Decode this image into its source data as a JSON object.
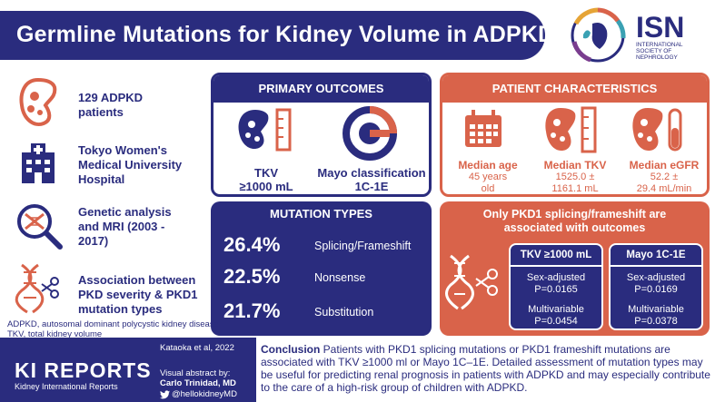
{
  "header": {
    "title": "Germline Mutations for Kidney Volume in ADPKD",
    "logo_text": "ISN",
    "logo_subtitle": "INTERNATIONAL SOCIETY OF NEPHROLOGY"
  },
  "left_items": [
    {
      "icon": "kidney-icon",
      "text": "129 ADPKD patients"
    },
    {
      "icon": "hospital-icon",
      "text": "Tokyo Women's Medical University Hospital"
    },
    {
      "icon": "dna-magnifier-icon",
      "text": "Genetic analysis and MRI (2003 - 2017)"
    },
    {
      "icon": "dna-scissors-icon",
      "text": "Association between PKD severity & PKD1 mutation types"
    }
  ],
  "primary_outcomes": {
    "heading": "PRIMARY OUTCOMES",
    "items": [
      {
        "label_line1": "TKV",
        "label_line2": "≥1000 mL"
      },
      {
        "label_line1": "Mayo classification",
        "label_line2": "1C-1E"
      }
    ]
  },
  "patient_characteristics": {
    "heading": "PATIENT CHARACTERISTICS",
    "items": [
      {
        "label": "Median age",
        "value_line1": "45 years",
        "value_line2": "old"
      },
      {
        "label": "Median TKV",
        "value_line1": "1525.0  ±",
        "value_line2": "1161.1 mL"
      },
      {
        "label": "Median eGFR",
        "value_line1": "52.2  ±",
        "value_line2": "29.4 mL/min"
      }
    ]
  },
  "mutation_types": {
    "heading": "MUTATION TYPES",
    "items": [
      {
        "pct": "26.4%",
        "label": "Splicing/Frameshift"
      },
      {
        "pct": "22.5%",
        "label": "Nonsense"
      },
      {
        "pct": "21.7%",
        "label": "Substitution"
      }
    ]
  },
  "association": {
    "heading_line1": "Only PKD1 splicing/frameshift are",
    "heading_line2": "associated with outcomes",
    "boxes": [
      {
        "title": "TKV  ≥1000 mL",
        "adj_label": "Sex-adjusted",
        "adj_p": "P=0.0165",
        "mv_label": "Multivariable",
        "mv_p": "P=0.0454"
      },
      {
        "title": "Mayo 1C-1E",
        "adj_label": "Sex-adjusted",
        "adj_p": "P=0.0169",
        "mv_label": "Multivariable",
        "mv_p": "P=0.0378"
      }
    ]
  },
  "footnotes": {
    "line1": "ADPKD, autosomal dominant polycystic kidney disease",
    "line2": "TKV,  total kidney volume"
  },
  "footer": {
    "brand": "KI REPORTS",
    "brand_sub": "Kidney International Reports",
    "citation": "Kataoka et al, 2022",
    "va_label": "Visual abstract by:",
    "va_author": "Carlo Trinidad, MD",
    "va_handle": "@hellokidneyMD",
    "conclusion_label": "Conclusion",
    "conclusion_text": " Patients with PKD1 splicing mutations or PKD1 frameshift mutations are associated with TKV ≥1000 ml or Mayo 1C–1E. Detailed assessment of mutation types may be useful for predicting renal prognosis in patients with ADPKD and may especially contribute to the care of a high-risk group of children with ADPKD."
  },
  "colors": {
    "navy": "#2a2c7e",
    "coral": "#d9634a"
  }
}
